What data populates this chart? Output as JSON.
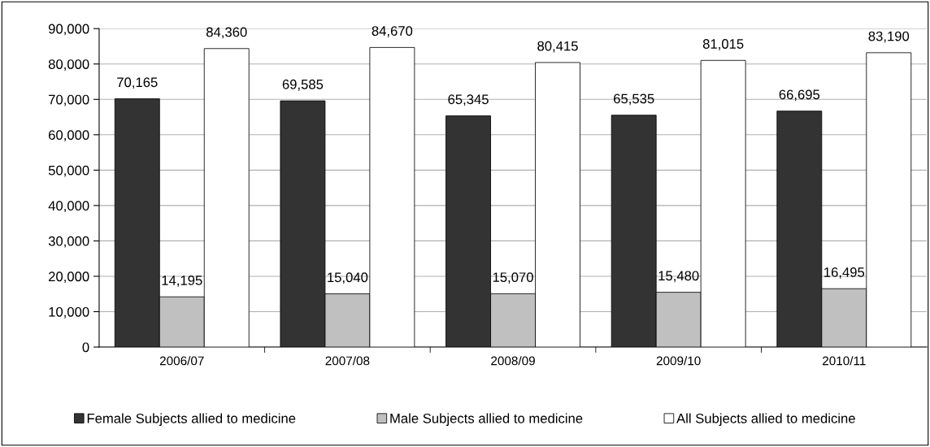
{
  "chart_data": {
    "type": "bar",
    "categories": [
      "2006/07",
      "2007/08",
      "2008/09",
      "2009/10",
      "2010/11"
    ],
    "series": [
      {
        "name": "Female Subjects allied to medicine",
        "color": "#333333",
        "values": [
          70165,
          69585,
          65345,
          65535,
          66695
        ],
        "value_labels": [
          "70,165",
          "69,585",
          "65,345",
          "65,535",
          "66,695"
        ]
      },
      {
        "name": "Male Subjects allied to medicine",
        "color": "#c0c0c0",
        "values": [
          14195,
          15040,
          15070,
          15480,
          16495
        ],
        "value_labels": [
          "14,195",
          "15,040",
          "15,070",
          "15,480",
          "16,495"
        ]
      },
      {
        "name": "All Subjects allied to medicine",
        "color": "#ffffff",
        "values": [
          84360,
          84670,
          80415,
          81015,
          83190
        ],
        "value_labels": [
          "84,360",
          "84,670",
          "80,415",
          "81,015",
          "83,190"
        ]
      }
    ],
    "ylim": [
      0,
      90000
    ],
    "yticks": [
      {
        "value": 0,
        "label": "0"
      },
      {
        "value": 10000,
        "label": "10,000"
      },
      {
        "value": 20000,
        "label": "20,000"
      },
      {
        "value": 30000,
        "label": "30,000"
      },
      {
        "value": 40000,
        "label": "40,000"
      },
      {
        "value": 50000,
        "label": "50,000"
      },
      {
        "value": 60000,
        "label": "60,000"
      },
      {
        "value": 70000,
        "label": "70,000"
      },
      {
        "value": 80000,
        "label": "80,000"
      },
      {
        "value": 90000,
        "label": "90,000"
      }
    ],
    "grid": "y",
    "legend": "bottom"
  }
}
